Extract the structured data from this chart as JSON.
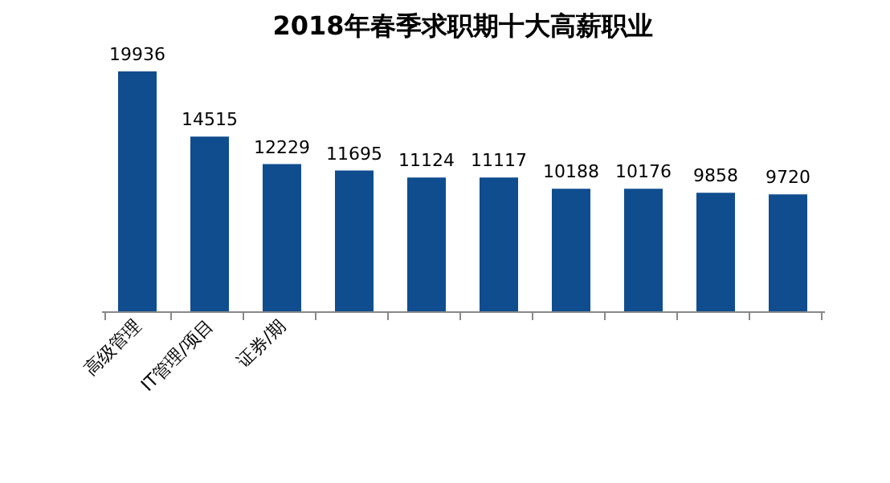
{
  "chart_data": {
    "type": "bar",
    "title": "2018年春季求职期十大高薪职业",
    "categories": [
      "高级管理",
      "IT管理/项目",
      "证券/期",
      null,
      null,
      null,
      null,
      null,
      null,
      null
    ],
    "values": [
      19936,
      14515,
      12229,
      11695,
      11124,
      11117,
      10188,
      10176,
      9858,
      9720
    ],
    "color": "#0f4d8f",
    "data_labels": true,
    "grid": false
  }
}
